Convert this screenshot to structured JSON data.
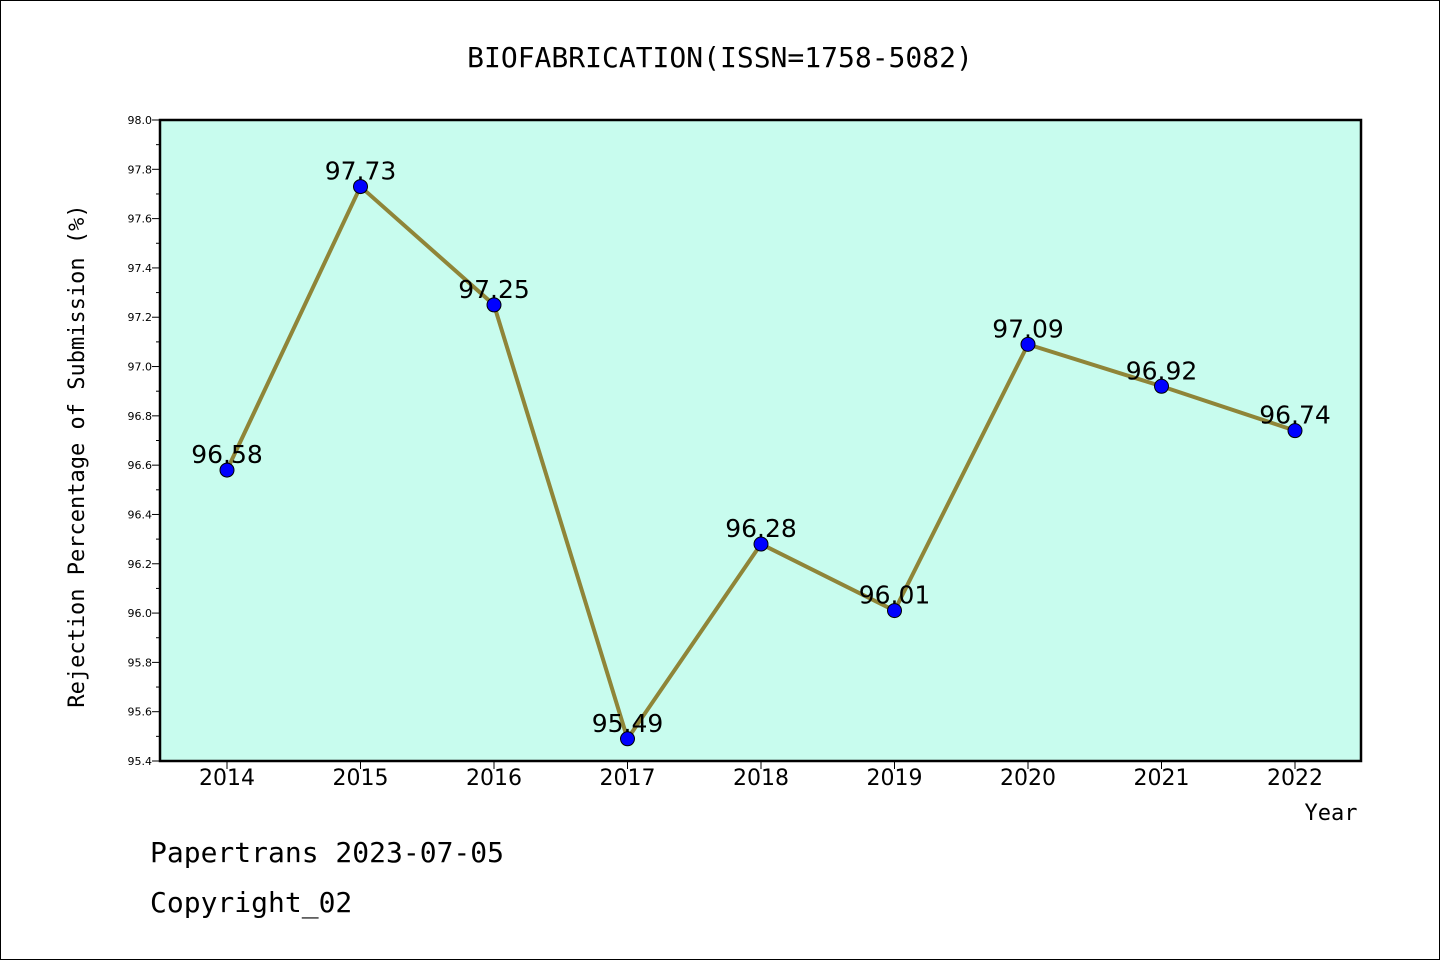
{
  "colors": {
    "plot_background": "#c8fcee",
    "line": "#8f8538",
    "marker": "#0000ff"
  },
  "chart_data": {
    "type": "line",
    "title": "BIOFABRICATION(ISSN=1758-5082)",
    "xlabel": "Year",
    "ylabel": "Rejection Percentage of Submission (%)",
    "categories": [
      "2014",
      "2015",
      "2016",
      "2017",
      "2018",
      "2019",
      "2020",
      "2021",
      "2022"
    ],
    "series": [
      {
        "values": [
          96.58,
          97.73,
          97.25,
          95.49,
          96.28,
          96.01,
          97.09,
          96.92,
          96.74
        ],
        "labels": [
          "96.58",
          "97.73",
          "97.25",
          "95.49",
          "96.28",
          "96.01",
          "97.09",
          "96.92",
          "96.74"
        ]
      }
    ],
    "ylim": [
      95.4,
      98.0
    ],
    "yticks": [
      "95.4",
      "95.6",
      "95.8",
      "96.0",
      "96.2",
      "96.4",
      "96.6",
      "96.8",
      "97.0",
      "97.2",
      "97.4",
      "97.6",
      "97.8",
      "98.0"
    ],
    "grid": false,
    "legend": "none"
  },
  "footer": {
    "line1": "Papertrans 2023-07-05",
    "line2": "Copyright_02"
  }
}
